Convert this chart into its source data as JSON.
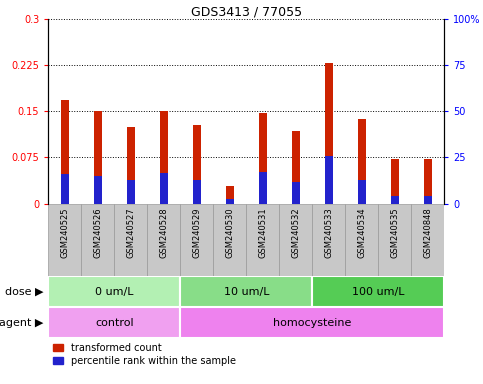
{
  "title": "GDS3413 / 77055",
  "samples": [
    "GSM240525",
    "GSM240526",
    "GSM240527",
    "GSM240528",
    "GSM240529",
    "GSM240530",
    "GSM240531",
    "GSM240532",
    "GSM240533",
    "GSM240534",
    "GSM240535",
    "GSM240848"
  ],
  "red_values": [
    0.168,
    0.15,
    0.125,
    0.15,
    0.128,
    0.028,
    0.148,
    0.118,
    0.228,
    0.138,
    0.073,
    0.073
  ],
  "blue_values": [
    0.048,
    0.044,
    0.038,
    0.05,
    0.038,
    0.008,
    0.052,
    0.035,
    0.078,
    0.038,
    0.012,
    0.012
  ],
  "ylim_left": [
    0,
    0.3
  ],
  "ylim_right": [
    0,
    100
  ],
  "yticks_left": [
    0,
    0.075,
    0.15,
    0.225,
    0.3
  ],
  "yticks_right": [
    0,
    25,
    50,
    75,
    100
  ],
  "ytick_labels_left": [
    "0",
    "0.075",
    "0.15",
    "0.225",
    "0.3"
  ],
  "ytick_labels_right": [
    "0",
    "25",
    "50",
    "75",
    "100%"
  ],
  "dose_groups": [
    {
      "label": "0 um/L",
      "start": 0,
      "end": 4
    },
    {
      "label": "10 um/L",
      "start": 4,
      "end": 8
    },
    {
      "label": "100 um/L",
      "start": 8,
      "end": 12
    }
  ],
  "dose_colors": [
    "#b3f0b3",
    "#88dd88",
    "#55cc55"
  ],
  "agent_groups": [
    {
      "label": "control",
      "start": 0,
      "end": 4
    },
    {
      "label": "homocysteine",
      "start": 4,
      "end": 12
    }
  ],
  "agent_colors": [
    "#f0a0f0",
    "#ee82ee"
  ],
  "red_color": "#cc2200",
  "blue_color": "#2222cc",
  "bar_bg_color": "#c8c8c8",
  "bar_width": 0.25,
  "legend_red": "transformed count",
  "legend_blue": "percentile rank within the sample",
  "dose_label": "dose",
  "agent_label": "agent",
  "cell_border_color": "#999999"
}
